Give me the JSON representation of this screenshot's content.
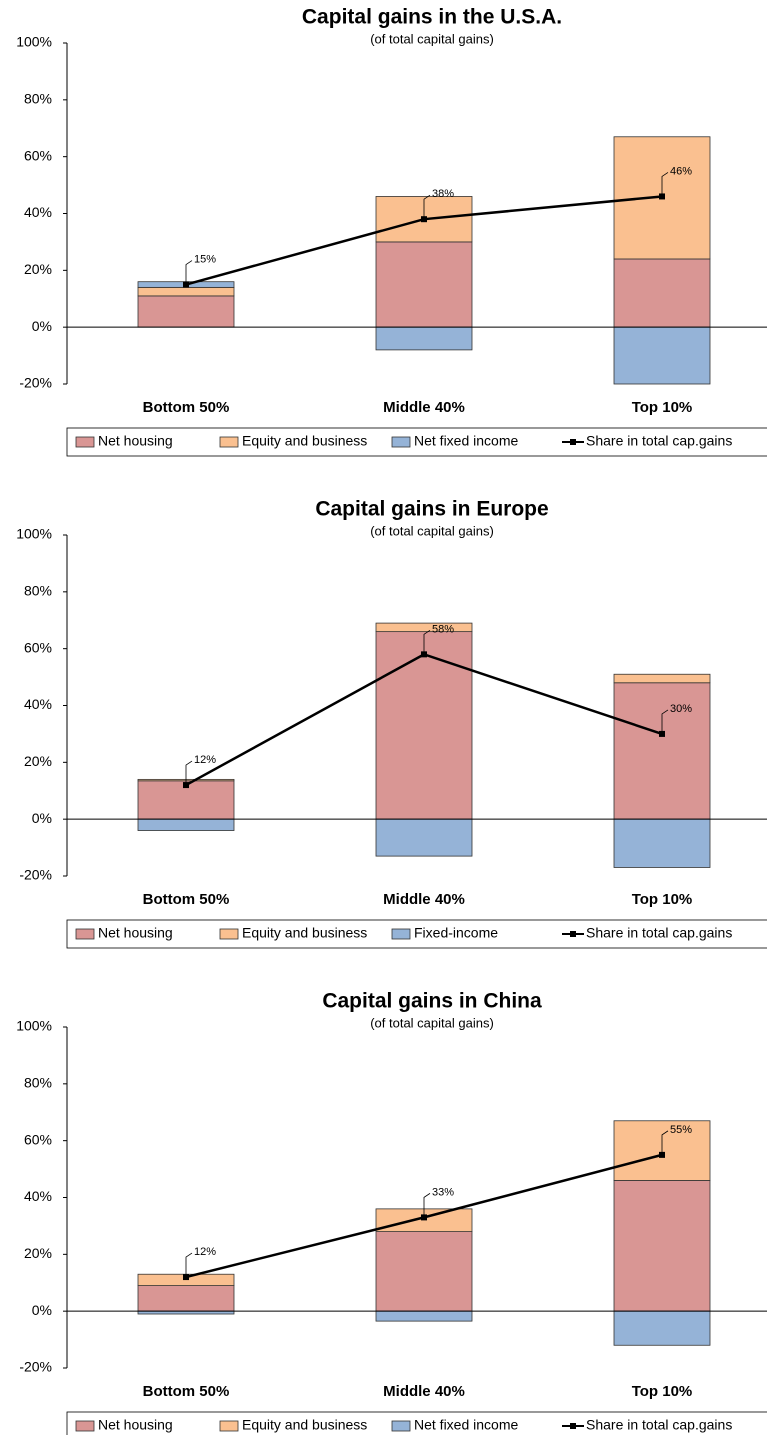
{
  "chart_data": [
    {
      "type": "bar",
      "title": "Capital gains in the U.S.A.",
      "subtitle": "(of total capital gains)",
      "categories": [
        "Bottom 50%",
        "Middle 40%",
        "Top 10%"
      ],
      "ylim": [
        -20,
        100
      ],
      "yticks": [
        {
          "value": -20,
          "label": "-20%"
        },
        {
          "value": 0,
          "label": "0%"
        },
        {
          "value": 20,
          "label": "20%"
        },
        {
          "value": 40,
          "label": "40%"
        },
        {
          "value": 60,
          "label": "60%"
        },
        {
          "value": 80,
          "label": "80%"
        },
        {
          "value": 100,
          "label": "100%"
        }
      ],
      "series": [
        {
          "name": "Net housing",
          "color": "#d99694",
          "values": [
            11,
            30,
            24
          ]
        },
        {
          "name": "Equity and business",
          "color": "#fac090",
          "values": [
            3,
            16,
            43
          ]
        },
        {
          "name": "Net fixed income",
          "color": "#95b3d7",
          "values": [
            2,
            -8,
            -20
          ]
        },
        {
          "name": "Share in total cap.gains",
          "color": "#000000",
          "type": "line",
          "values": [
            15,
            38,
            46
          ],
          "value_labels": [
            "15%",
            "38%",
            "46%"
          ]
        }
      ]
    },
    {
      "type": "bar",
      "title": "Capital gains in Europe",
      "subtitle": "(of total capital gains)",
      "categories": [
        "Bottom 50%",
        "Middle 40%",
        "Top 10%"
      ],
      "ylim": [
        -20,
        100
      ],
      "yticks": [
        {
          "value": -20,
          "label": "-20%"
        },
        {
          "value": 0,
          "label": "0%"
        },
        {
          "value": 20,
          "label": "20%"
        },
        {
          "value": 40,
          "label": "40%"
        },
        {
          "value": 60,
          "label": "60%"
        },
        {
          "value": 80,
          "label": "80%"
        },
        {
          "value": 100,
          "label": "100%"
        }
      ],
      "series": [
        {
          "name": "Net housing",
          "color": "#d99694",
          "values": [
            13.5,
            66,
            48
          ]
        },
        {
          "name": "Equity and business",
          "color": "#fac090",
          "values": [
            0.5,
            3,
            3
          ]
        },
        {
          "name": "Fixed-income",
          "color": "#95b3d7",
          "values": [
            -4,
            -13,
            -17
          ]
        },
        {
          "name": "Share in total cap.gains",
          "color": "#000000",
          "type": "line",
          "values": [
            12,
            58,
            30
          ],
          "value_labels": [
            "12%",
            "58%",
            "30%"
          ]
        }
      ]
    },
    {
      "type": "bar",
      "title": "Capital gains in China",
      "subtitle": "(of total capital gains)",
      "categories": [
        "Bottom 50%",
        "Middle 40%",
        "Top 10%"
      ],
      "ylim": [
        -20,
        100
      ],
      "yticks": [
        {
          "value": -20,
          "label": "-20%"
        },
        {
          "value": 0,
          "label": "0%"
        },
        {
          "value": 20,
          "label": "20%"
        },
        {
          "value": 40,
          "label": "40%"
        },
        {
          "value": 60,
          "label": "60%"
        },
        {
          "value": 80,
          "label": "80%"
        },
        {
          "value": 100,
          "label": "100%"
        }
      ],
      "series": [
        {
          "name": "Net housing",
          "color": "#d99694",
          "values": [
            9,
            28,
            46
          ]
        },
        {
          "name": "Equity and business",
          "color": "#fac090",
          "values": [
            4,
            8,
            21
          ]
        },
        {
          "name": "Net fixed income",
          "color": "#95b3d7",
          "values": [
            -1,
            -3.5,
            -12
          ]
        },
        {
          "name": "Share in total cap.gains",
          "color": "#000000",
          "type": "line",
          "values": [
            12,
            33,
            55
          ],
          "value_labels": [
            "12%",
            "33%",
            "55%"
          ]
        }
      ]
    }
  ]
}
